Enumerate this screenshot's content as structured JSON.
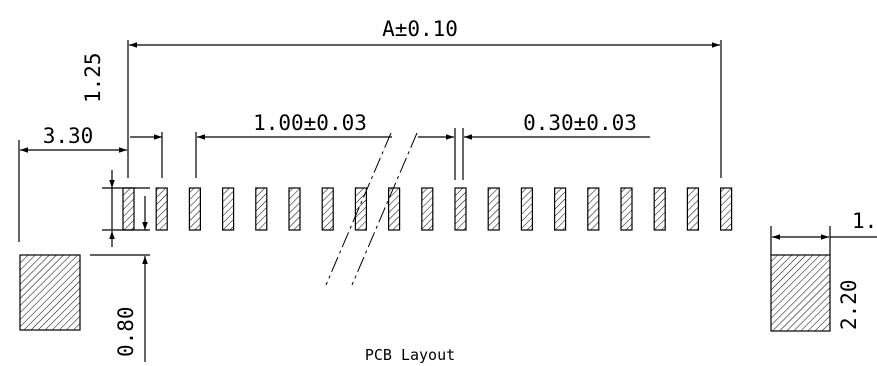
{
  "drawing": {
    "caption": "PCB Layout",
    "dimensions": {
      "overall_length": "A±0.10",
      "pad_pitch": "1.00±0.03",
      "pad_width": "0.30±0.03",
      "to_mount_pad": "3.30",
      "top_offset": "1.25",
      "pad_gap": "0.80",
      "side_pad_width_partial": "1.",
      "side_pad_height_partial": "2.20"
    },
    "signal_pad_count": 19
  }
}
